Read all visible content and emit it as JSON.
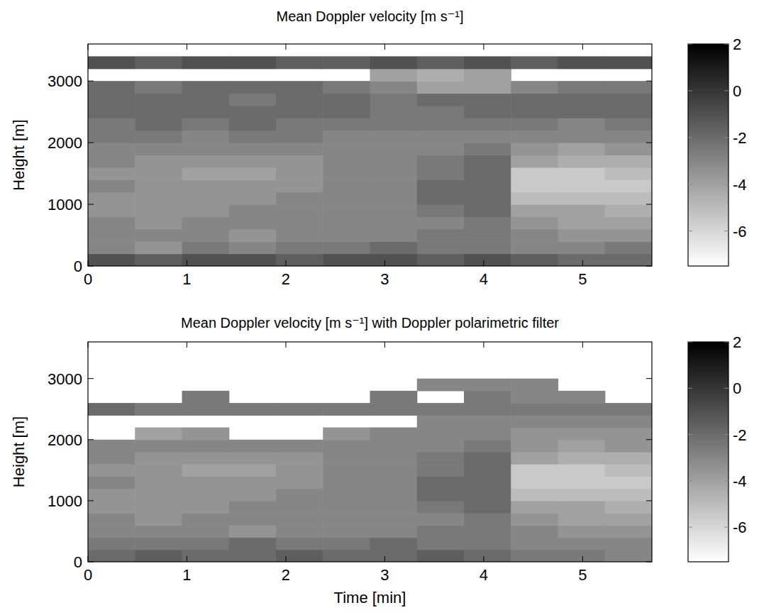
{
  "chart_data": [
    {
      "type": "heatmap",
      "title": "Mean Doppler velocity [m s⁻¹]",
      "y_label": "Height [m]",
      "xlim": [
        0,
        5.7
      ],
      "xticks": [
        0,
        1,
        2,
        3,
        4,
        5
      ],
      "ylim": [
        0,
        3600
      ],
      "yticks": [
        0,
        1000,
        2000,
        3000
      ],
      "x": [
        0.2375,
        0.7125,
        1.1875,
        1.6625,
        2.1375,
        2.6125,
        3.0875,
        3.5625,
        4.0375,
        4.5125,
        4.9875,
        5.4625
      ],
      "y": [
        100,
        300,
        500,
        700,
        900,
        1100,
        1300,
        1500,
        1700,
        1900,
        2100,
        2300,
        2500,
        2700,
        2900,
        3100,
        3300,
        3500
      ],
      "cells": [
        [
          -1,
          -1.5,
          -1,
          -1,
          -1.5,
          -1,
          -1,
          -1.5,
          -1,
          -1.5,
          -2,
          -2
        ],
        [
          -3,
          -3.5,
          -2.5,
          -3,
          -2.5,
          -2.5,
          -2,
          -2.5,
          -2.5,
          -3,
          -3,
          -2.5
        ],
        [
          -3,
          -3,
          -3,
          -3.5,
          -3,
          -3,
          -3,
          -2.5,
          -2.5,
          -3,
          -3.5,
          -3.5
        ],
        [
          -3,
          -3.5,
          -3,
          -3,
          -3,
          -3,
          -3,
          -3,
          -2.5,
          -3.5,
          -4,
          -4
        ],
        [
          -3.5,
          -3.5,
          -3.5,
          -3,
          -3,
          -3,
          -3,
          -2.5,
          -2,
          -4,
          -4,
          -4.5
        ],
        [
          -3.5,
          -3.5,
          -3.5,
          -3.5,
          -3,
          -3,
          -3,
          -2,
          -2,
          -5,
          -5,
          -5
        ],
        [
          -3,
          -3.5,
          -3.5,
          -3.5,
          -3.5,
          -3,
          -3,
          -2,
          -2,
          -5.5,
          -5.5,
          -5.5
        ],
        [
          -3.5,
          -3.5,
          -4,
          -4,
          -3.5,
          -3,
          -3,
          -2.5,
          -2,
          -5.5,
          -5.5,
          -5
        ],
        [
          -3,
          -3.5,
          -3.5,
          -3.5,
          -3.5,
          -3,
          -3,
          -2.5,
          -2,
          -4,
          -4.5,
          -4.5
        ],
        [
          -3,
          -3,
          -3,
          -3,
          -3,
          -3,
          -3,
          -3,
          -2.5,
          -3.5,
          -4,
          -3.5
        ],
        [
          -2.5,
          -2.5,
          -3,
          -2.5,
          -2.5,
          -3,
          -3,
          -3,
          -3,
          -3,
          -3,
          -3
        ],
        [
          -2.5,
          -2,
          -2.5,
          -2,
          -2.5,
          -2.5,
          -2.5,
          -2.5,
          -2.5,
          -2.5,
          -3,
          -2.5
        ],
        [
          -2,
          -2,
          -2,
          -2,
          -2,
          -2,
          -2.5,
          -2.5,
          -2,
          -2,
          -2,
          -2
        ],
        [
          -2,
          -2,
          -2,
          -2.5,
          -2,
          -2,
          -2.5,
          -2,
          -2,
          -2,
          -2,
          -2
        ],
        [
          -2,
          -2.5,
          -2,
          -2,
          -2,
          -2.5,
          -3,
          -4,
          -4,
          -3,
          -2.5,
          -2.5
        ],
        [
          null,
          null,
          null,
          null,
          null,
          null,
          -4,
          -4.5,
          -4,
          null,
          null,
          null
        ],
        [
          -1,
          -1.5,
          -1,
          -1,
          -1.5,
          -1.5,
          -1,
          -1.5,
          -1,
          -1.5,
          -1,
          -1
        ],
        [
          null,
          null,
          null,
          null,
          null,
          null,
          null,
          null,
          null,
          null,
          null,
          null
        ]
      ],
      "color_range": [
        -7.5,
        2
      ],
      "color_ticks": [
        -6,
        -4,
        -2,
        0,
        2
      ]
    },
    {
      "type": "heatmap",
      "title": "Mean Doppler velocity [m s⁻¹] with Doppler polarimetric filter",
      "x_label": "Time [min]",
      "y_label": "Height [m]",
      "xlim": [
        0,
        5.7
      ],
      "xticks": [
        0,
        1,
        2,
        3,
        4,
        5
      ],
      "ylim": [
        0,
        3600
      ],
      "yticks": [
        0,
        1000,
        2000,
        3000
      ],
      "x": [
        0.2375,
        0.7125,
        1.1875,
        1.6625,
        2.1375,
        2.6125,
        3.0875,
        3.5625,
        4.0375,
        4.5125,
        4.9875,
        5.4625
      ],
      "y": [
        100,
        300,
        500,
        700,
        900,
        1100,
        1300,
        1500,
        1700,
        1900,
        2100,
        2300,
        2500,
        2700,
        2900,
        3100,
        3300,
        3500
      ],
      "cells": [
        [
          -2,
          -1.5,
          -2,
          -2,
          -1.5,
          -2,
          -2,
          -1.5,
          -2,
          -2.5,
          -2.5,
          -3
        ],
        [
          -2.5,
          -2.5,
          -2.5,
          -2,
          -2.5,
          -2.5,
          -2,
          -2.5,
          -2.5,
          -3,
          -3,
          -3
        ],
        [
          -3,
          -3,
          -3,
          -3.5,
          -3,
          -3,
          -3,
          -2.5,
          -2.5,
          -3,
          -3.5,
          -3.5
        ],
        [
          -3,
          -3.5,
          -3,
          -3,
          -3,
          -3,
          -3,
          -3,
          -2.5,
          -3.5,
          -4,
          -4
        ],
        [
          -3.5,
          -3.5,
          -3.5,
          -3,
          -3,
          -3,
          -3,
          -2.5,
          -2,
          -4,
          -4,
          -4.5
        ],
        [
          -3.5,
          -3.5,
          -3.5,
          -3.5,
          -3,
          -3,
          -3,
          -2,
          -2,
          -5,
          -5,
          -5
        ],
        [
          -3,
          -3.5,
          -3.5,
          -3.5,
          -3.5,
          -3,
          -3,
          -2,
          -2,
          -5.5,
          -5.5,
          -5.5
        ],
        [
          -3.5,
          -3.5,
          -4,
          -4,
          -3.5,
          -3,
          -3,
          -2.5,
          -2,
          -5.5,
          -5.5,
          -5
        ],
        [
          -3,
          -3.5,
          -3.5,
          -3.5,
          -3.5,
          -3,
          -3,
          -2.5,
          -2,
          -4,
          -4.5,
          -4.5
        ],
        [
          -3,
          -3,
          -3,
          -3,
          -3,
          -3,
          -3,
          -3,
          -2.5,
          -3.5,
          -4,
          -3.5
        ],
        [
          null,
          -4,
          -3.5,
          null,
          null,
          -3.5,
          -3,
          -3,
          -3,
          -3.5,
          -3.5,
          -3.5
        ],
        [
          null,
          null,
          null,
          null,
          null,
          null,
          null,
          -3,
          -3,
          -3,
          -3,
          -3
        ],
        [
          -2,
          -2.5,
          -2.5,
          -2.5,
          -2.5,
          -2.5,
          -2.5,
          -2.5,
          -2.5,
          -2.5,
          -2.5,
          -2.5
        ],
        [
          null,
          null,
          -2.5,
          null,
          null,
          null,
          -2.5,
          null,
          -2.5,
          -3,
          -3,
          null
        ],
        [
          null,
          null,
          null,
          null,
          null,
          null,
          null,
          -3,
          -3,
          -3,
          null,
          null
        ],
        [
          null,
          null,
          null,
          null,
          null,
          null,
          null,
          null,
          null,
          null,
          null,
          null
        ],
        [
          null,
          null,
          null,
          null,
          null,
          null,
          null,
          null,
          null,
          null,
          null,
          null
        ],
        [
          null,
          null,
          null,
          null,
          null,
          null,
          null,
          null,
          null,
          null,
          null,
          null
        ]
      ],
      "color_range": [
        -7.5,
        2
      ],
      "color_ticks": [
        -6,
        -4,
        -2,
        0,
        2
      ]
    }
  ]
}
